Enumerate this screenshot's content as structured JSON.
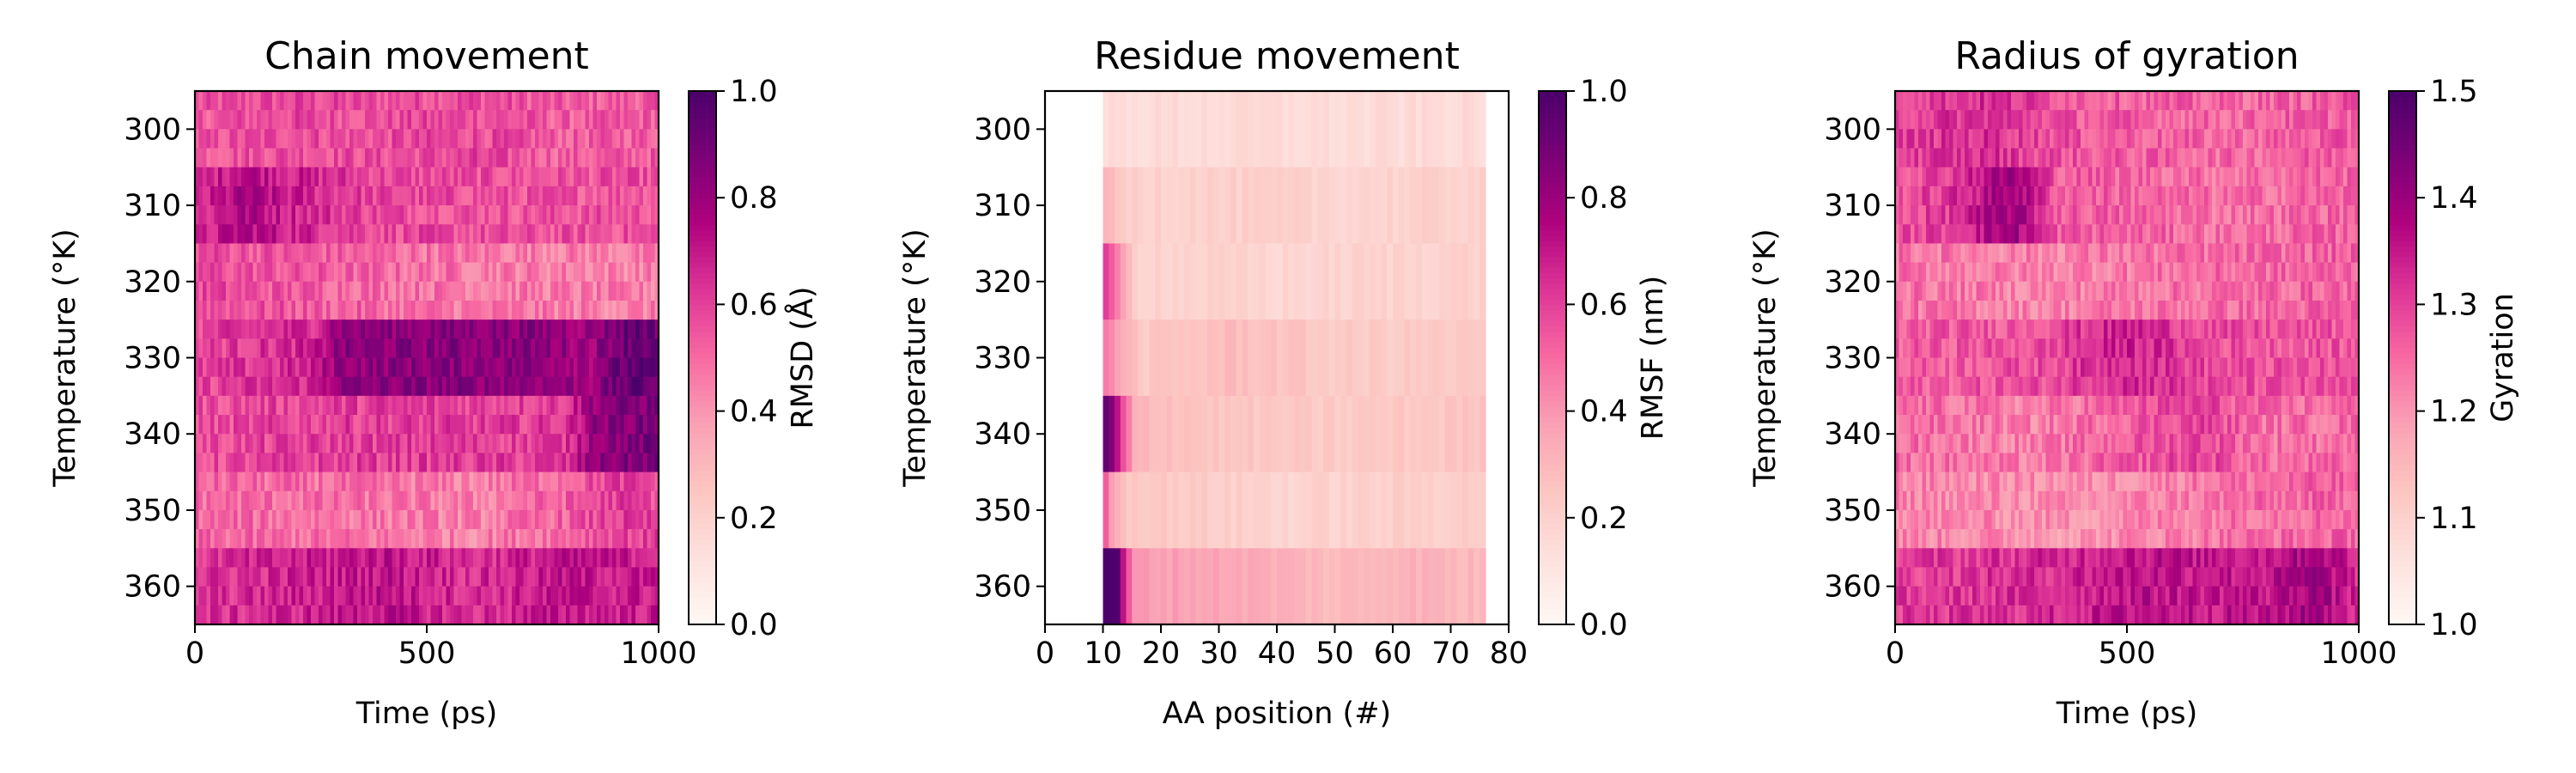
{
  "chart_data": [
    {
      "type": "heatmap",
      "title": "Chain movement",
      "xlabel": "Time (ps)",
      "ylabel": "Temperature (°K)",
      "colorbar_label": "RMSD (Å)",
      "xlim": [
        0,
        1000
      ],
      "ylim": [
        295,
        365
      ],
      "x_ticks": [
        0,
        500,
        1000
      ],
      "y_ticks": [
        300,
        310,
        320,
        330,
        340,
        350,
        360
      ],
      "color_range": [
        0.0,
        1.0
      ],
      "colorbar_ticks": [
        "0.0",
        "0.2",
        "0.4",
        "0.6",
        "0.8",
        "1.0"
      ],
      "colormap": "RdPu",
      "rows": [
        {
          "temperature": 300,
          "profile": [
            [
              0,
              0.54
            ],
            [
              200,
              0.58
            ],
            [
              380,
              0.56
            ],
            [
              600,
              0.58
            ],
            [
              800,
              0.52
            ],
            [
              1000,
              0.54
            ]
          ]
        },
        {
          "temperature": 310,
          "profile": [
            [
              0,
              0.62
            ],
            [
              100,
              0.76
            ],
            [
              200,
              0.68
            ],
            [
              400,
              0.58
            ],
            [
              700,
              0.55
            ],
            [
              1000,
              0.56
            ]
          ]
        },
        {
          "temperature": 320,
          "profile": [
            [
              0,
              0.58
            ],
            [
              300,
              0.52
            ],
            [
              500,
              0.48
            ],
            [
              700,
              0.46
            ],
            [
              1000,
              0.44
            ]
          ]
        },
        {
          "temperature": 330,
          "profile": [
            [
              0,
              0.58
            ],
            [
              250,
              0.66
            ],
            [
              300,
              0.82
            ],
            [
              500,
              0.84
            ],
            [
              700,
              0.84
            ],
            [
              850,
              0.8
            ],
            [
              950,
              0.96
            ],
            [
              1000,
              0.88
            ]
          ]
        },
        {
          "temperature": 340,
          "profile": [
            [
              0,
              0.56
            ],
            [
              300,
              0.6
            ],
            [
              700,
              0.6
            ],
            [
              800,
              0.62
            ],
            [
              850,
              0.82
            ],
            [
              1000,
              0.88
            ]
          ]
        },
        {
          "temperature": 350,
          "profile": [
            [
              0,
              0.5
            ],
            [
              300,
              0.48
            ],
            [
              600,
              0.44
            ],
            [
              800,
              0.52
            ],
            [
              900,
              0.6
            ],
            [
              1000,
              0.58
            ]
          ]
        },
        {
          "temperature": 360,
          "profile": [
            [
              0,
              0.62
            ],
            [
              200,
              0.66
            ],
            [
              400,
              0.72
            ],
            [
              600,
              0.64
            ],
            [
              800,
              0.7
            ],
            [
              1000,
              0.68
            ]
          ]
        }
      ]
    },
    {
      "type": "heatmap",
      "title": "Residue movement",
      "xlabel": "AA position (#)",
      "ylabel": "Temperature (°K)",
      "colorbar_label": "RMSF (nm)",
      "xlim": [
        0,
        80
      ],
      "ylim": [
        295,
        365
      ],
      "x_ticks": [
        0,
        10,
        20,
        30,
        40,
        50,
        60,
        70,
        80
      ],
      "y_ticks": [
        300,
        310,
        320,
        330,
        340,
        350,
        360
      ],
      "color_range": [
        0.0,
        1.0
      ],
      "colorbar_ticks": [
        "0.0",
        "0.2",
        "0.4",
        "0.6",
        "0.8",
        "1.0"
      ],
      "colormap": "RdPu",
      "residue_range": [
        10,
        76
      ],
      "rows": [
        {
          "temperature": 300,
          "profile": [
            [
              10,
              0.14
            ],
            [
              30,
              0.15
            ],
            [
              50,
              0.14
            ],
            [
              76,
              0.15
            ]
          ]
        },
        {
          "temperature": 310,
          "profile": [
            [
              10,
              0.28
            ],
            [
              12,
              0.24
            ],
            [
              14,
              0.2
            ],
            [
              30,
              0.2
            ],
            [
              50,
              0.18
            ],
            [
              76,
              0.2
            ]
          ]
        },
        {
          "temperature": 320,
          "profile": [
            [
              10,
              0.62
            ],
            [
              11,
              0.5
            ],
            [
              13,
              0.35
            ],
            [
              15,
              0.2
            ],
            [
              40,
              0.17
            ],
            [
              76,
              0.2
            ]
          ]
        },
        {
          "temperature": 330,
          "profile": [
            [
              10,
              0.48
            ],
            [
              11,
              0.4
            ],
            [
              14,
              0.3
            ],
            [
              16,
              0.22
            ],
            [
              32,
              0.28
            ],
            [
              50,
              0.22
            ],
            [
              76,
              0.22
            ]
          ]
        },
        {
          "temperature": 340,
          "profile": [
            [
              10,
              0.92
            ],
            [
              11,
              0.85
            ],
            [
              13,
              0.55
            ],
            [
              15,
              0.3
            ],
            [
              30,
              0.24
            ],
            [
              50,
              0.22
            ],
            [
              76,
              0.25
            ]
          ]
        },
        {
          "temperature": 350,
          "profile": [
            [
              10,
              0.55
            ],
            [
              11,
              0.4
            ],
            [
              13,
              0.25
            ],
            [
              40,
              0.18
            ],
            [
              60,
              0.2
            ],
            [
              76,
              0.22
            ]
          ]
        },
        {
          "temperature": 360,
          "profile": [
            [
              10,
              1.0
            ],
            [
              12,
              0.95
            ],
            [
              13,
              0.7
            ],
            [
              15,
              0.38
            ],
            [
              32,
              0.35
            ],
            [
              50,
              0.28
            ],
            [
              62,
              0.32
            ],
            [
              76,
              0.28
            ]
          ]
        }
      ]
    },
    {
      "type": "heatmap",
      "title": "Radius of gyration",
      "xlabel": "Time (ps)",
      "ylabel": "Temperature (°K)",
      "colorbar_label": "Gyration",
      "xlim": [
        0,
        1000
      ],
      "ylim": [
        295,
        365
      ],
      "x_ticks": [
        0,
        500,
        1000
      ],
      "y_ticks": [
        300,
        310,
        320,
        330,
        340,
        350,
        360
      ],
      "color_range": [
        1.0,
        1.5
      ],
      "colorbar_ticks": [
        "1.0",
        "1.1",
        "1.2",
        "1.3",
        "1.4",
        "1.5"
      ],
      "colormap": "RdPu",
      "rows": [
        {
          "temperature": 300,
          "profile": [
            [
              0,
              1.3
            ],
            [
              200,
              1.32
            ],
            [
              400,
              1.27
            ],
            [
              700,
              1.25
            ],
            [
              1000,
              1.27
            ]
          ]
        },
        {
          "temperature": 310,
          "profile": [
            [
              0,
              1.28
            ],
            [
              100,
              1.3
            ],
            [
              250,
              1.4
            ],
            [
              350,
              1.27
            ],
            [
              700,
              1.24
            ],
            [
              1000,
              1.26
            ]
          ]
        },
        {
          "temperature": 320,
          "profile": [
            [
              0,
              1.24
            ],
            [
              300,
              1.22
            ],
            [
              600,
              1.24
            ],
            [
              1000,
              1.26
            ]
          ]
        },
        {
          "temperature": 330,
          "profile": [
            [
              0,
              1.26
            ],
            [
              300,
              1.28
            ],
            [
              500,
              1.34
            ],
            [
              700,
              1.28
            ],
            [
              1000,
              1.27
            ]
          ]
        },
        {
          "temperature": 340,
          "profile": [
            [
              0,
              1.25
            ],
            [
              300,
              1.22
            ],
            [
              650,
              1.3
            ],
            [
              800,
              1.24
            ],
            [
              1000,
              1.25
            ]
          ]
        },
        {
          "temperature": 350,
          "profile": [
            [
              0,
              1.22
            ],
            [
              400,
              1.2
            ],
            [
              700,
              1.24
            ],
            [
              1000,
              1.26
            ]
          ]
        },
        {
          "temperature": 360,
          "profile": [
            [
              0,
              1.3
            ],
            [
              300,
              1.32
            ],
            [
              500,
              1.36
            ],
            [
              800,
              1.35
            ],
            [
              900,
              1.4
            ],
            [
              1000,
              1.32
            ]
          ]
        }
      ]
    }
  ]
}
